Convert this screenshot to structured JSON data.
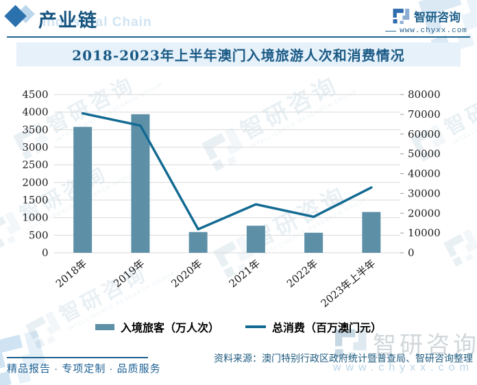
{
  "header": {
    "title": "产业链",
    "title_ghost": "Industrial Chain",
    "brand": "智研咨询",
    "brand_url": "www.chyxx.com"
  },
  "chart": {
    "title": "2018-2023年上半年澳门入境旅游人次和消费情况"
  },
  "chart_data": {
    "type": "bar+line",
    "title": "2018-2023年上半年澳门入境旅游人次和消费情况",
    "categories": [
      "2018年",
      "2019年",
      "2020年",
      "2021年",
      "2022年",
      "2023年上半年"
    ],
    "series": [
      {
        "name": "入境旅客（万人次）",
        "type": "bar",
        "axis": "left",
        "color": "#5d90a7",
        "values": [
          3580,
          3940,
          590,
          770,
          570,
          1160
        ]
      },
      {
        "name": "总消费（百万澳门元）",
        "type": "line",
        "axis": "right",
        "color": "#136a92",
        "values": [
          70500,
          64300,
          11900,
          24500,
          18200,
          33000
        ]
      }
    ],
    "left_axis": {
      "min": 0,
      "max": 4500,
      "step": 500
    },
    "right_axis": {
      "min": 0,
      "max": 80000,
      "step": 10000
    },
    "grid": true,
    "legend_position": "bottom"
  },
  "footer": {
    "slogan": "精品报告 · 专项定制 · 品质服务",
    "source": "资料来源：澳门特别行政区政府统计暨普查局、智研咨询整理"
  },
  "watermark": {
    "brand": "智研咨询",
    "caption": "INTELLIGENCE RESEARCH GROUP",
    "url": "www.chyxx.com"
  },
  "colors": {
    "bar": "#5d90a7",
    "line": "#136a92",
    "band_bg": "#e6f1fa",
    "accent": "#1d6390",
    "gridline": "#d9d9d9"
  }
}
